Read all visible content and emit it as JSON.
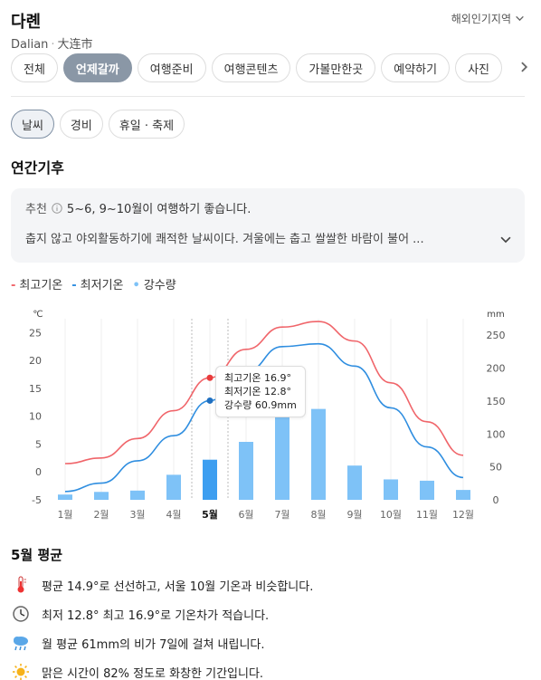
{
  "header": {
    "title": "다롄",
    "subtitle_en": "Dalian",
    "subtitle_cn": "大连市",
    "region_menu": "해외인기지역"
  },
  "tabs": [
    "전체",
    "언제갈까",
    "여행준비",
    "여행콘텐츠",
    "가볼만한곳",
    "예약하기",
    "사진"
  ],
  "active_tab": "언제갈까",
  "subtabs": [
    "날씨",
    "경비",
    "휴일 · 축제"
  ],
  "active_subtab": "날씨",
  "section_title": "연간기후",
  "recommendation": {
    "label": "추천",
    "text": "5~6, 9~10월이 여행하기 좋습니다.",
    "description": "춥지 않고 야외활동하기에 쾌적한 날씨이다. 겨울에는 춥고 쌀쌀한 바람이 불어 ..."
  },
  "legend": {
    "high": "최고기온",
    "low": "최저기온",
    "rain": "강수량"
  },
  "colors": {
    "high": "#f0656a",
    "low": "#2f8ee0",
    "rain": "#7ec2f7",
    "rain_selected": "#3d9ef0",
    "tab_active": "#8a97a6"
  },
  "chart_data": {
    "type": "bar",
    "categories": [
      "1월",
      "2월",
      "3월",
      "4월",
      "5월",
      "6월",
      "7월",
      "8월",
      "9월",
      "10월",
      "11월",
      "12월"
    ],
    "series": [
      {
        "name": "최고기온",
        "type": "line",
        "axis": "left",
        "values": [
          1.5,
          2.5,
          6.0,
          11.0,
          16.9,
          22.0,
          26.0,
          27.0,
          23.5,
          16.0,
          9.0,
          3.0
        ]
      },
      {
        "name": "최저기온",
        "type": "line",
        "axis": "left",
        "values": [
          -3.5,
          -2.0,
          2.0,
          6.5,
          12.8,
          18.0,
          22.5,
          23.0,
          19.0,
          11.5,
          4.5,
          -1.0
        ]
      },
      {
        "name": "강수량",
        "type": "bar",
        "axis": "right",
        "values": [
          8,
          12,
          14,
          38,
          60.9,
          88,
          145,
          138,
          52,
          31,
          29,
          15
        ]
      }
    ],
    "ylabel_left": "℃",
    "ylabel_right": "mm",
    "left_ticks": [
      -5,
      0,
      5,
      10,
      15,
      20,
      25
    ],
    "right_ticks": [
      0,
      50,
      100,
      150,
      200,
      250
    ],
    "ylim_left": [
      -5,
      27.5
    ],
    "ylim_right": [
      0,
      275
    ],
    "selected_index": 4,
    "grid": true
  },
  "tooltip": {
    "high": "최고기온 16.9°",
    "low": "최저기온 12.8°",
    "rain": "강수량 60.9mm"
  },
  "month_summary": {
    "title": "5월 평균",
    "facts": [
      {
        "icon": "thermometer-icon",
        "text": "평균 14.9°로 선선하고, 서울 10월 기온과 비슷합니다."
      },
      {
        "icon": "clock-icon",
        "text": "최저 12.8° 최고 16.9°로 기온차가 적습니다."
      },
      {
        "icon": "rain-cloud-icon",
        "text": "월 평균 61mm의 비가 7일에 걸쳐 내립니다."
      },
      {
        "icon": "sun-icon",
        "text": "맑은 시간이 82% 정도로 화창한 기간입니다."
      }
    ]
  }
}
